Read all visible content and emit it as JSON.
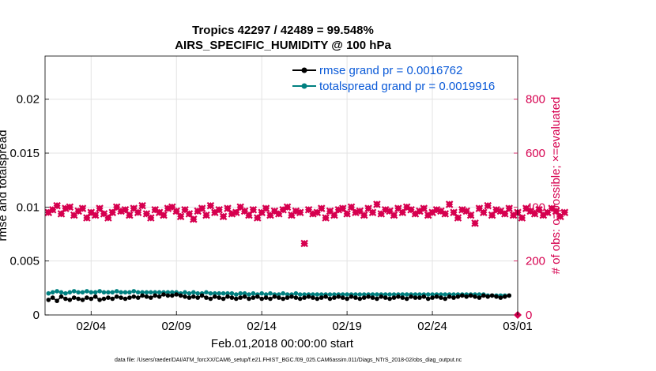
{
  "chart_data": {
    "type": "line",
    "title_line1": "Tropics 42297 / 42489 = 99.548%",
    "title_line2": "AIRS_SPECIFIC_HUMIDITY @ 100 hPa",
    "xlabel": "Feb.01,2018 00:00:00 start",
    "ylabel_left": "rmse and totalspread",
    "ylabel_right": "# of obs: o=possible; ×=evaluated",
    "x_ticks": [
      "02/04",
      "02/09",
      "02/14",
      "02/19",
      "02/24",
      "03/01"
    ],
    "x_tick_days": [
      3,
      8,
      13,
      18,
      23,
      28
    ],
    "xlim": [
      0.3,
      28
    ],
    "ylim_left": [
      0,
      0.024
    ],
    "y_ticks_left": [
      "0",
      "0.005",
      "0.01",
      "0.015",
      "0.02"
    ],
    "y_tick_values_left": [
      0,
      0.005,
      0.01,
      0.015,
      0.02
    ],
    "ylim_right": [
      0,
      960
    ],
    "y_ticks_right": [
      "0",
      "200",
      "400",
      "600",
      "800"
    ],
    "y_tick_values_right": [
      0,
      200,
      400,
      600,
      800
    ],
    "grid": true,
    "legend_position": "top-right",
    "footnote": "data file: /Users/raeder/DAI/ATM_forcXX/CAM6_setup/f.e21.FHIST_BGC.f09_025.CAM6assim.011/Diags_NTrS_2018-02/obs_diag_output.nc",
    "colors": {
      "rmse": "#000000",
      "spread": "#008080",
      "obs": "#d6004f",
      "legend_text": "#0a5ad8",
      "right_axis": "#d6004f"
    },
    "series": [
      {
        "name": "rmse grand pr = 0.0016762",
        "axis": "left",
        "x_start": 0.5,
        "x_step": 0.25,
        "values": [
          0.0014,
          0.0016,
          0.0013,
          0.0017,
          0.0015,
          0.0014,
          0.0016,
          0.0015,
          0.0014,
          0.0016,
          0.0015,
          0.0017,
          0.0014,
          0.0015,
          0.0016,
          0.0015,
          0.0017,
          0.0016,
          0.0015,
          0.0016,
          0.0017,
          0.0016,
          0.0018,
          0.0017,
          0.0016,
          0.0018,
          0.0017,
          0.0019,
          0.0018,
          0.0018,
          0.0019,
          0.0018,
          0.0017,
          0.0016,
          0.0017,
          0.0016,
          0.0018,
          0.0016,
          0.0015,
          0.0017,
          0.0016,
          0.0015,
          0.0017,
          0.0016,
          0.0015,
          0.0016,
          0.0017,
          0.0015,
          0.0016,
          0.0017,
          0.0015,
          0.0016,
          0.0015,
          0.0017,
          0.0016,
          0.0015,
          0.0016,
          0.0017,
          0.0016,
          0.0015,
          0.0016,
          0.0017,
          0.0016,
          0.0015,
          0.0016,
          0.0017,
          0.0015,
          0.0016,
          0.0017,
          0.0016,
          0.0015,
          0.0017,
          0.0016,
          0.0015,
          0.0016,
          0.0017,
          0.0016,
          0.0015,
          0.0017,
          0.0016,
          0.0015,
          0.0016,
          0.0017,
          0.0016,
          0.0015,
          0.0017,
          0.0016,
          0.0016,
          0.0017,
          0.0015,
          0.0016,
          0.0017,
          0.0016,
          0.0015,
          0.0017,
          0.0016,
          0.0017,
          0.0018,
          0.0017,
          0.0018,
          0.0017,
          0.0016,
          0.0018,
          0.0017,
          0.0018,
          0.0017,
          0.0016,
          0.0017,
          0.0018
        ]
      },
      {
        "name": "totalspread grand pr = 0.0019916",
        "axis": "left",
        "x_start": 0.5,
        "x_step": 0.25,
        "values": [
          0.002,
          0.0021,
          0.0022,
          0.0021,
          0.002,
          0.0021,
          0.0022,
          0.0021,
          0.0021,
          0.0022,
          0.0021,
          0.0021,
          0.0022,
          0.0021,
          0.0021,
          0.0021,
          0.0022,
          0.0021,
          0.0021,
          0.0021,
          0.0022,
          0.0021,
          0.0021,
          0.0021,
          0.0021,
          0.0021,
          0.0021,
          0.0021,
          0.0021,
          0.0021,
          0.0021,
          0.002,
          0.0021,
          0.002,
          0.0021,
          0.002,
          0.002,
          0.0021,
          0.002,
          0.002,
          0.002,
          0.002,
          0.002,
          0.002,
          0.0019,
          0.002,
          0.002,
          0.0019,
          0.002,
          0.0019,
          0.002,
          0.0019,
          0.002,
          0.0019,
          0.0019,
          0.002,
          0.0019,
          0.0019,
          0.002,
          0.0019,
          0.0019,
          0.0019,
          0.0019,
          0.0019,
          0.0019,
          0.0019,
          0.0019,
          0.0019,
          0.0019,
          0.0019,
          0.0019,
          0.0019,
          0.0019,
          0.0019,
          0.0019,
          0.0019,
          0.0019,
          0.0019,
          0.0019,
          0.0019,
          0.0019,
          0.0019,
          0.0019,
          0.0019,
          0.0019,
          0.0019,
          0.0019,
          0.0019,
          0.0019,
          0.0019,
          0.0019,
          0.0019,
          0.0019,
          0.0019,
          0.0019,
          0.0019,
          0.0019,
          0.0019,
          0.0019,
          0.0019,
          0.0019,
          0.0019,
          0.0019,
          0.0018,
          0.0018,
          0.0018,
          0.0018,
          0.0018,
          0.0018
        ]
      },
      {
        "name": "# of obs evaluated",
        "axis": "right",
        "x_start": 0.5,
        "x_step": 0.25,
        "values": [
          380,
          390,
          405,
          375,
          395,
          400,
          370,
          385,
          395,
          360,
          380,
          370,
          395,
          375,
          360,
          380,
          400,
          385,
          390,
          370,
          395,
          380,
          405,
          375,
          360,
          390,
          380,
          370,
          395,
          400,
          385,
          365,
          390,
          375,
          355,
          385,
          395,
          370,
          405,
          380,
          390,
          365,
          395,
          375,
          380,
          400,
          385,
          370,
          390,
          360,
          380,
          395,
          370,
          385,
          375,
          390,
          400,
          370,
          385,
          380,
          265,
          390,
          375,
          380,
          395,
          360,
          385,
          370,
          390,
          395,
          375,
          400,
          380,
          385,
          370,
          395,
          380,
          410,
          375,
          390,
          385,
          370,
          395,
          380,
          400,
          390,
          375,
          385,
          395,
          370,
          380,
          390,
          385,
          375,
          410,
          380,
          360,
          390,
          385,
          370,
          340,
          395,
          380,
          405,
          370,
          390,
          385,
          375,
          395,
          370,
          380,
          360,
          395,
          385,
          375,
          390,
          370,
          380,
          395,
          385,
          365,
          380
        ]
      }
    ]
  }
}
